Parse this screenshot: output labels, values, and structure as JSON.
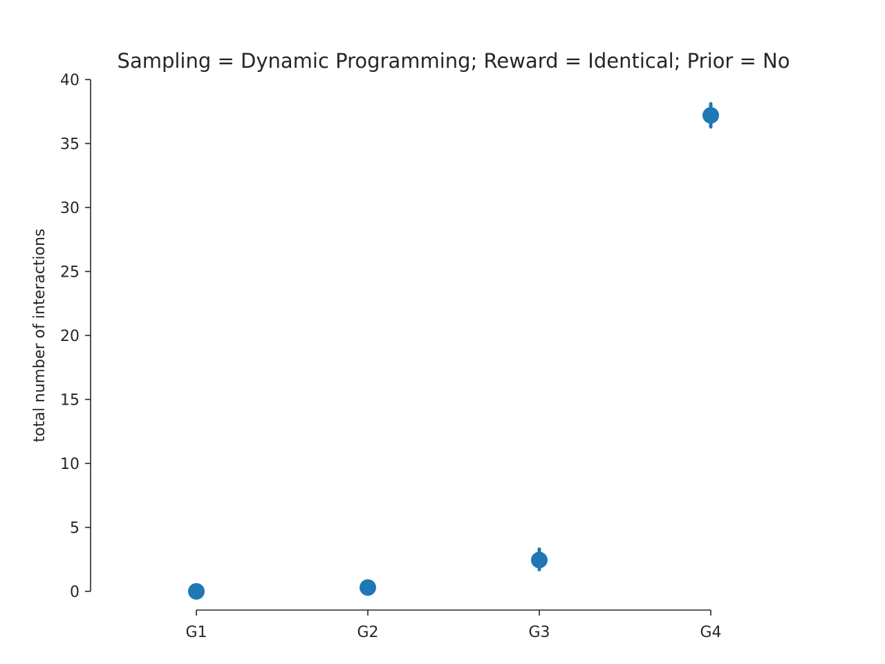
{
  "chart_data": {
    "type": "scatter",
    "title": "Sampling = Dynamic Programming; Reward = Identical; Prior = No",
    "xlabel": "",
    "ylabel": "total number of interactions",
    "categories": [
      "G1",
      "G2",
      "G3",
      "G4"
    ],
    "series": [
      {
        "values": [
          0.0,
          0.3,
          2.45,
          37.2
        ],
        "err_low": [
          0.0,
          0.3,
          1.7,
          36.3
        ],
        "err_high": [
          0.0,
          0.3,
          3.3,
          38.1
        ],
        "color": "#1f77b4"
      }
    ],
    "ylim": [
      0,
      40
    ],
    "yticks": [
      0,
      5,
      10,
      15,
      20,
      25,
      30,
      35,
      40
    ],
    "grid": false,
    "legend": "none"
  }
}
